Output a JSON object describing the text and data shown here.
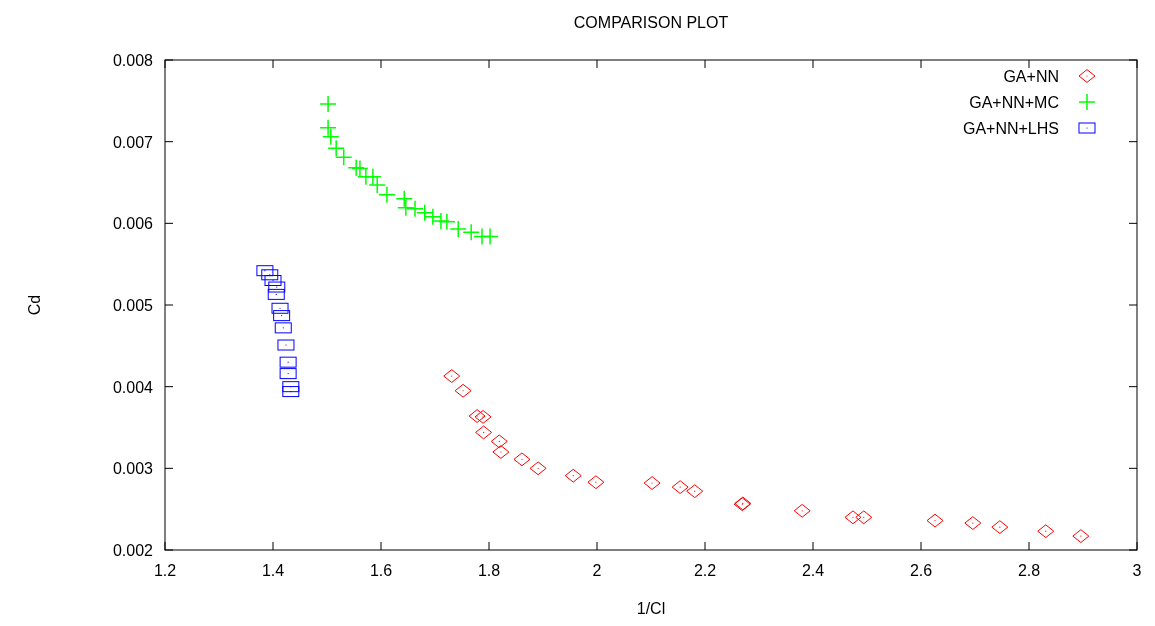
{
  "chart_data": {
    "type": "scatter",
    "title": "COMPARISON PLOT",
    "xlabel": "1/Cl",
    "ylabel": "Cd",
    "xlim": [
      1.2,
      3
    ],
    "xticks": [
      1.2,
      1.4,
      1.6,
      1.8,
      2,
      2.2,
      2.4,
      2.6,
      2.8,
      3
    ],
    "ylim": [
      0.002,
      0.008
    ],
    "yticks": [
      0.002,
      0.003,
      0.004,
      0.005,
      0.006,
      0.007,
      0.008
    ],
    "legend": "top right",
    "grid": false,
    "series": [
      {
        "name": "GA+NN",
        "color": "#ff0000",
        "marker": "diamond",
        "x": [
          1.731,
          1.752,
          1.778,
          1.789,
          1.79,
          1.819,
          1.822,
          1.861,
          1.891,
          1.956,
          1.998,
          2.102,
          2.154,
          2.181,
          2.269,
          2.27,
          2.38,
          2.474,
          2.494,
          2.626,
          2.696,
          2.746,
          2.831,
          2.896
        ],
        "values": [
          0.00413,
          0.00395,
          0.00364,
          0.00363,
          0.00344,
          0.00333,
          0.0032,
          0.00311,
          0.003,
          0.00291,
          0.00283,
          0.00282,
          0.00277,
          0.00272,
          0.00256,
          0.00257,
          0.00248,
          0.0024,
          0.0024,
          0.00236,
          0.00233,
          0.00228,
          0.00223,
          0.00217
        ]
      },
      {
        "name": "GA+NN+MC",
        "color": "#00ff00",
        "marker": "cross",
        "x": [
          1.502,
          1.502,
          1.507,
          1.517,
          1.531,
          1.554,
          1.561,
          1.572,
          1.585,
          1.593,
          1.611,
          1.643,
          1.646,
          1.663,
          1.681,
          1.696,
          1.711,
          1.722,
          1.743,
          1.767,
          1.787,
          1.802
        ],
        "values": [
          0.00746,
          0.00717,
          0.00706,
          0.00692,
          0.00681,
          0.00668,
          0.00667,
          0.00657,
          0.00657,
          0.00647,
          0.00635,
          0.0063,
          0.00619,
          0.00618,
          0.00613,
          0.00608,
          0.00603,
          0.00602,
          0.00593,
          0.00589,
          0.00584,
          0.00584
        ]
      },
      {
        "name": "GA+NN+LHS",
        "color": "#0000ff",
        "marker": "square",
        "x": [
          1.385,
          1.394,
          1.4,
          1.407,
          1.406,
          1.413,
          1.416,
          1.419,
          1.424,
          1.428,
          1.428,
          1.433,
          1.433
        ],
        "values": [
          0.00542,
          0.00537,
          0.0053,
          0.00522,
          0.00513,
          0.00496,
          0.00487,
          0.00472,
          0.00451,
          0.0043,
          0.00416,
          0.004,
          0.00394
        ]
      }
    ]
  }
}
